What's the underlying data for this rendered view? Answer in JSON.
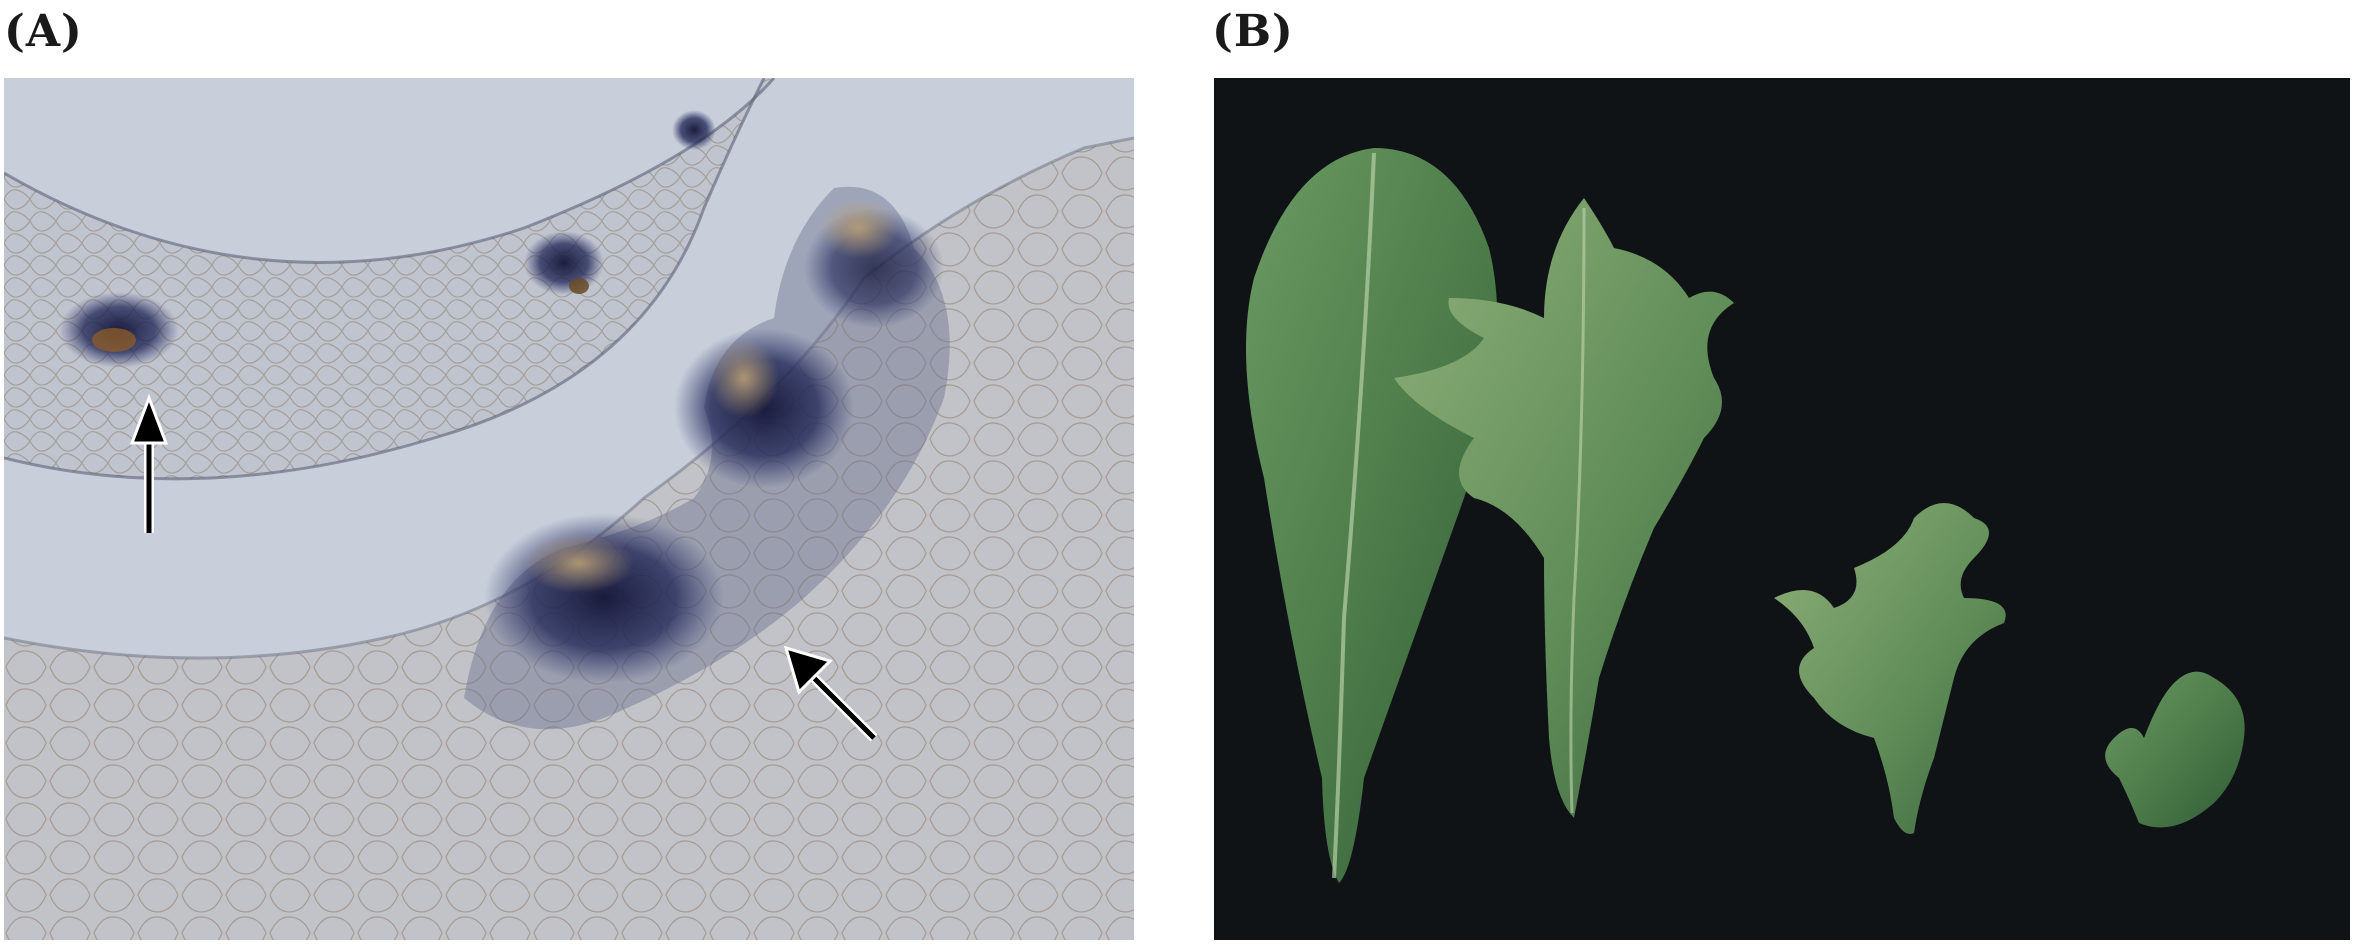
{
  "figure": {
    "panel_a": {
      "label": "(A)",
      "description_icon": "microscopy-section-image"
    },
    "panel_b": {
      "label": "(B)",
      "description_icon": "leaf-series-photo"
    }
  },
  "colors": {
    "panel_a_background": "#c6cdda",
    "panel_b_background": "#0f1316",
    "stain": "#1c1f4a",
    "leaf_green": "#4f7f4a"
  }
}
